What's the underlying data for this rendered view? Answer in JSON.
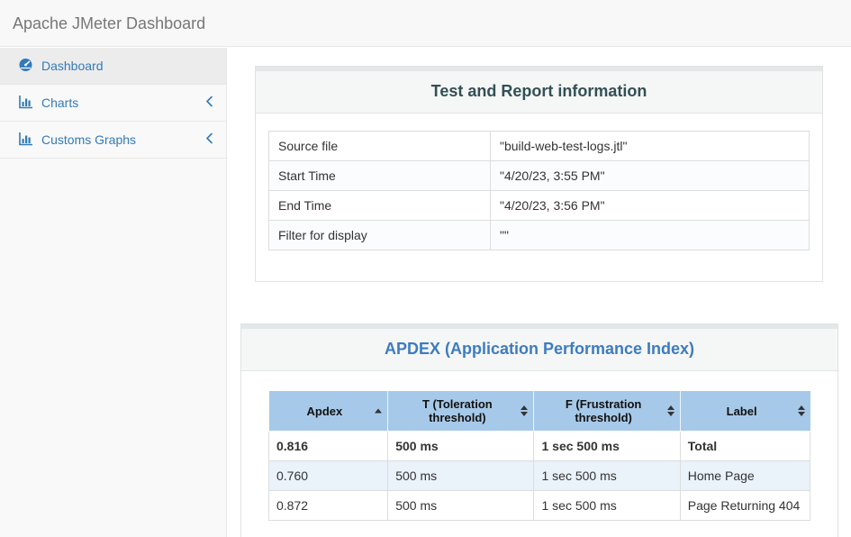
{
  "navbar": {
    "brand": "Apache JMeter Dashboard"
  },
  "sidebar": {
    "items": [
      {
        "label": "Dashboard",
        "icon": "dashboard-icon",
        "active": true,
        "collapsible": false
      },
      {
        "label": "Charts",
        "icon": "bar-chart-icon",
        "active": false,
        "collapsible": true
      },
      {
        "label": "Customs Graphs",
        "icon": "bar-chart-icon",
        "active": false,
        "collapsible": true
      }
    ]
  },
  "panels": {
    "test_info": {
      "title": "Test and Report information",
      "rows": [
        {
          "label": "Source file",
          "value": "\"build-web-test-logs.jtl\""
        },
        {
          "label": "Start Time",
          "value": "\"4/20/23, 3:55 PM\""
        },
        {
          "label": "End Time",
          "value": "\"4/20/23, 3:56 PM\""
        },
        {
          "label": "Filter for display",
          "value": "\"\""
        }
      ]
    },
    "apdex": {
      "title": "APDEX (Application Performance Index)",
      "columns": [
        {
          "label": "Apdex",
          "sort": "asc"
        },
        {
          "label": "T (Toleration threshold)",
          "sort": "both"
        },
        {
          "label": "F (Frustration threshold)",
          "sort": "both"
        },
        {
          "label": "Label",
          "sort": "both"
        }
      ],
      "rows": [
        {
          "apdex": "0.816",
          "t": "500 ms",
          "f": "1 sec 500 ms",
          "label": "Total",
          "bold": true
        },
        {
          "apdex": "0.760",
          "t": "500 ms",
          "f": "1 sec 500 ms",
          "label": "Home Page",
          "bold": false
        },
        {
          "apdex": "0.872",
          "t": "500 ms",
          "f": "1 sec 500 ms",
          "label": "Page Returning 404",
          "bold": false
        }
      ]
    }
  },
  "colors": {
    "link_blue": "#337ab7",
    "apdex_title_blue": "#3d7cbf",
    "info_title_teal": "#325055",
    "apdex_header_bg": "#a7c9e9",
    "stripe_blue": "#eaf2fa",
    "navbar_bg": "#f8f8f8",
    "active_item_bg": "#ececec"
  }
}
